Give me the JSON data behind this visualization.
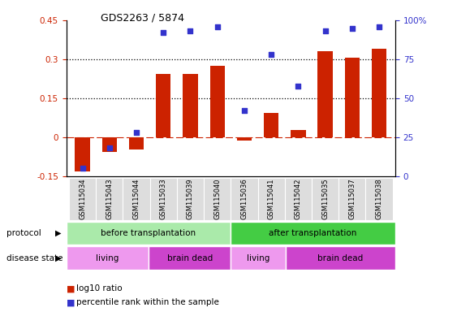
{
  "title": "GDS2263 / 5874",
  "samples": [
    "GSM115034",
    "GSM115043",
    "GSM115044",
    "GSM115033",
    "GSM115039",
    "GSM115040",
    "GSM115036",
    "GSM115041",
    "GSM115042",
    "GSM115035",
    "GSM115037",
    "GSM115038"
  ],
  "log10_ratio": [
    -0.13,
    -0.055,
    -0.048,
    0.245,
    0.245,
    0.275,
    -0.012,
    0.095,
    0.028,
    0.33,
    0.305,
    0.34
  ],
  "percentile_rank": [
    5,
    18,
    28,
    92,
    93,
    96,
    42,
    78,
    58,
    93,
    95,
    96
  ],
  "bar_color": "#cc2200",
  "dot_color": "#3333cc",
  "ylim_left": [
    -0.15,
    0.45
  ],
  "ylim_right": [
    0,
    100
  ],
  "yticks_left": [
    -0.15,
    0,
    0.15,
    0.3,
    0.45
  ],
  "ytick_left_labels": [
    "-0.15",
    "0",
    "0.15",
    "0.3",
    "0.45"
  ],
  "yticks_right": [
    0,
    25,
    50,
    75,
    100
  ],
  "ytick_right_labels": [
    "0",
    "25",
    "50",
    "75",
    "100%"
  ],
  "hlines": [
    0.15,
    0.3
  ],
  "zero_line_color": "#cc2200",
  "hline_color": "black",
  "protocol_groups": [
    {
      "label": "before transplantation",
      "start": 0,
      "end": 6,
      "color": "#aaeaaa"
    },
    {
      "label": "after transplantation",
      "start": 6,
      "end": 12,
      "color": "#44cc44"
    }
  ],
  "disease_groups": [
    {
      "label": "living",
      "start": 0,
      "end": 3,
      "color": "#ee99ee"
    },
    {
      "label": "brain dead",
      "start": 3,
      "end": 6,
      "color": "#cc44cc"
    },
    {
      "label": "living",
      "start": 6,
      "end": 8,
      "color": "#ee99ee"
    },
    {
      "label": "brain dead",
      "start": 8,
      "end": 12,
      "color": "#cc44cc"
    }
  ],
  "protocol_label": "protocol",
  "disease_label": "disease state",
  "legend_items": [
    {
      "label": "log10 ratio",
      "color": "#cc2200"
    },
    {
      "label": "percentile rank within the sample",
      "color": "#3333cc"
    }
  ],
  "bar_width": 0.55,
  "tick_label_bg": "#dddddd",
  "tick_label_edge": "#aaaaaa"
}
